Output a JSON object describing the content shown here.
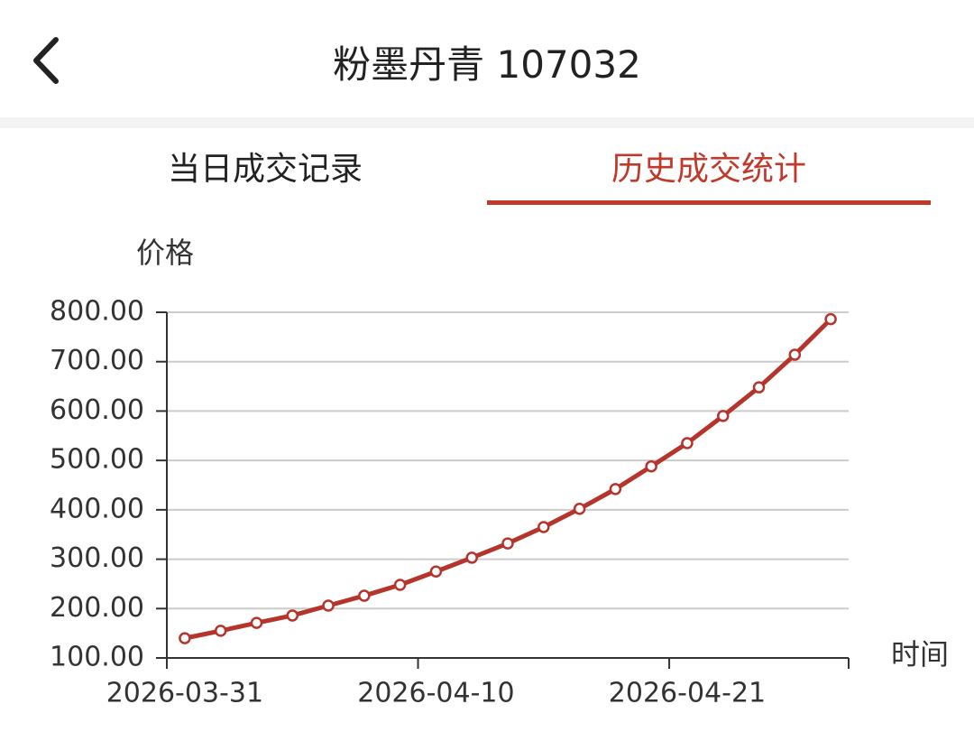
{
  "header": {
    "title": "粉墨丹青 107032"
  },
  "tabs": [
    "当日成交记录",
    "历史成交统计"
  ],
  "chart_data": {
    "type": "line",
    "y_label": "价格",
    "x_label": "时间",
    "categories": [
      "2026-03-31",
      null,
      null,
      null,
      null,
      null,
      null,
      "2026-04-10",
      null,
      null,
      null,
      null,
      null,
      null,
      "2026-04-21",
      null,
      null,
      null,
      null
    ],
    "values": [
      140,
      155,
      171,
      186,
      206,
      226,
      248,
      275,
      303,
      332,
      365,
      402,
      442,
      488,
      535,
      590,
      648,
      714,
      786
    ],
    "color": "#b5352c",
    "ylim": [
      100,
      800
    ],
    "yticks": [
      {
        "value": 100,
        "label": "100.00"
      },
      {
        "value": 200,
        "label": "200.00"
      },
      {
        "value": 300,
        "label": "300.00"
      },
      {
        "value": 400,
        "label": "400.00"
      },
      {
        "value": 500,
        "label": "500.00"
      },
      {
        "value": 600,
        "label": "600.00"
      },
      {
        "value": 700,
        "label": "700.00"
      },
      {
        "value": 800,
        "label": "800.00"
      }
    ],
    "grid": true
  }
}
